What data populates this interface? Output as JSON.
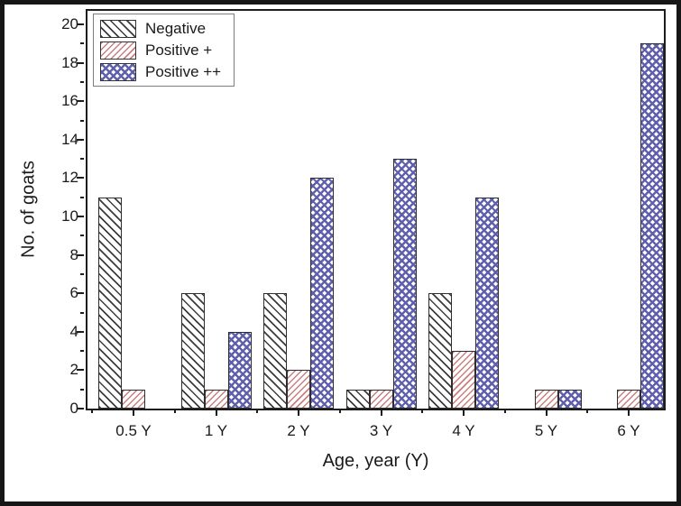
{
  "figure": {
    "background": "#ffffff",
    "outer_border_color": "#161616",
    "frame_color": "#1c1c1c",
    "text_color": "#1a1a1a",
    "legend_border_color": "#7d7d7d"
  },
  "chart_data": {
    "type": "bar",
    "title": "",
    "xlabel": "Age, year (Y)",
    "ylabel": "No. of goats",
    "categories": [
      "0.5 Y",
      "1 Y",
      "2 Y",
      "3 Y",
      "4 Y",
      "5 Y",
      "6 Y"
    ],
    "series": [
      {
        "name": "Negative",
        "values": [
          11,
          6,
          6,
          1,
          6,
          0,
          0
        ],
        "pattern": "diagonal-down",
        "color": "#3c3c3c"
      },
      {
        "name": "Positive +",
        "values": [
          1,
          1,
          2,
          1,
          3,
          1,
          1
        ],
        "pattern": "diagonal-up",
        "color": "#cc7e7e"
      },
      {
        "name": "Positive ++",
        "values": [
          0,
          4,
          12,
          13,
          11,
          1,
          19
        ],
        "pattern": "crosshatch",
        "color": "#5f5fae"
      }
    ],
    "ylim": [
      0,
      20.9
    ],
    "y_ticks_major": [
      0,
      2,
      4,
      6,
      8,
      10,
      12,
      14,
      16,
      18,
      20
    ],
    "y_minor_step": 1,
    "grid": false,
    "legend_position": "top-left",
    "bar_fill": "#ffffff"
  }
}
